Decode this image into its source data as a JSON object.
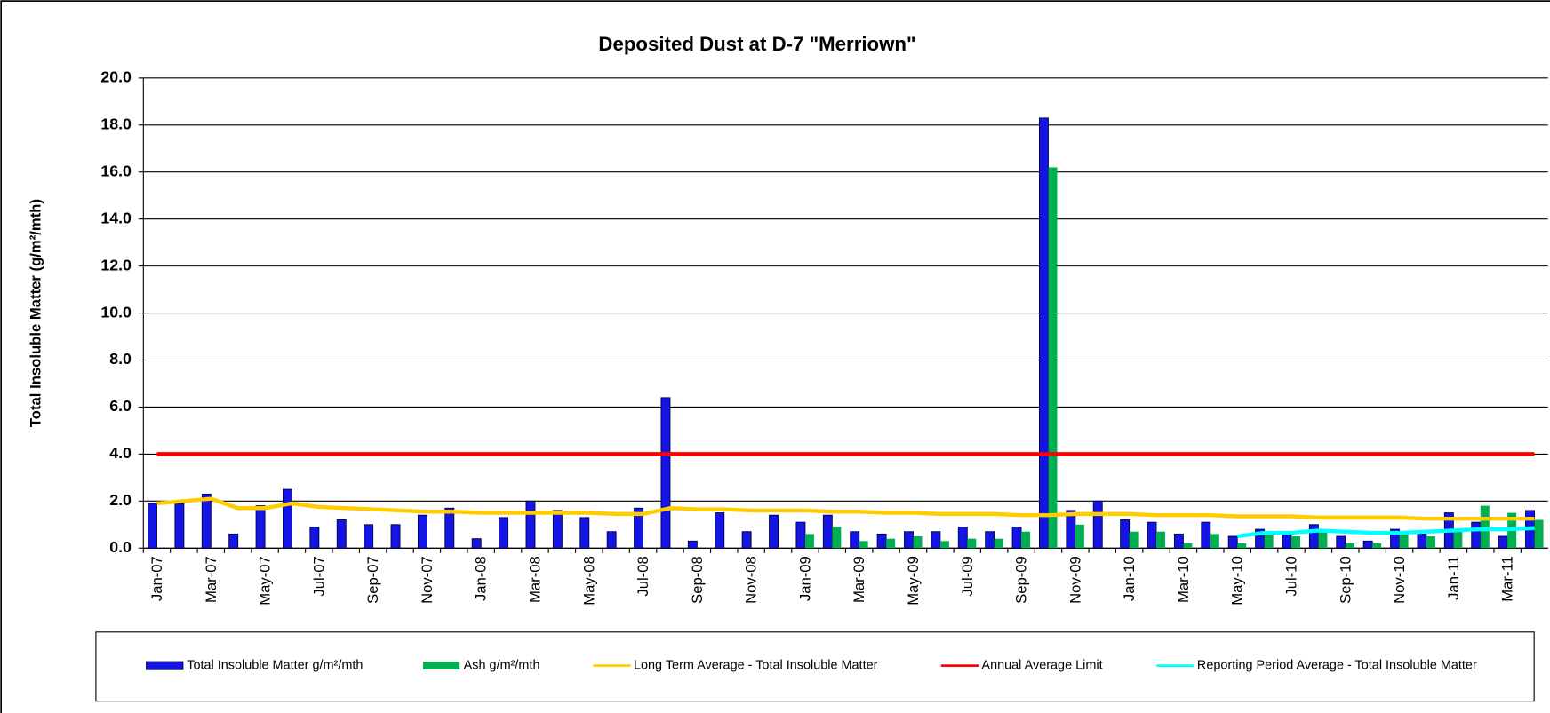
{
  "chart_data": {
    "type": "bar",
    "title": "Deposited Dust at D-7 \"Merriown\"",
    "y_label": "Total Insoluble Matter  (g/m²/mth)",
    "categories": [
      "Jan-07",
      null,
      "Mar-07",
      null,
      "May-07",
      null,
      "Jul-07",
      null,
      "Sep-07",
      null,
      "Nov-07",
      null,
      "Jan-08",
      null,
      "Mar-08",
      null,
      "May-08",
      null,
      "Jul-08",
      null,
      "Sep-08",
      null,
      "Nov-08",
      null,
      "Jan-09",
      null,
      "Mar-09",
      null,
      "May-09",
      null,
      "Jul-09",
      null,
      "Sep-09",
      null,
      "Nov-09",
      null,
      "Jan-10",
      null,
      "Mar-10",
      null,
      "May-10",
      null,
      "Jul-10",
      null,
      "Sep-10",
      null,
      "Nov-10",
      null,
      "Jan-11",
      null,
      "Mar-11",
      null
    ],
    "series": [
      {
        "name": "Total Insoluble Matter  g/m²/mth",
        "type": "bar",
        "color": "#1414e6",
        "values": [
          1.9,
          1.9,
          2.3,
          0.6,
          1.8,
          2.5,
          0.9,
          1.2,
          1.0,
          1.0,
          1.4,
          1.7,
          0.4,
          1.3,
          2.0,
          1.6,
          1.3,
          0.7,
          1.7,
          6.4,
          0.3,
          1.5,
          0.7,
          1.4,
          1.1,
          1.4,
          0.7,
          0.6,
          0.7,
          0.7,
          0.9,
          0.7,
          0.9,
          18.3,
          1.6,
          2.0,
          1.2,
          1.1,
          0.6,
          1.1,
          0.5,
          0.8,
          0.6,
          1.0,
          0.5,
          0.3,
          0.8,
          0.6,
          1.5,
          1.1,
          0.5,
          1.6
        ]
      },
      {
        "name": "Ash  g/m²/mth",
        "type": "bar",
        "color": "#00b050",
        "values": [
          null,
          null,
          null,
          null,
          null,
          null,
          null,
          null,
          null,
          null,
          null,
          null,
          null,
          null,
          null,
          null,
          null,
          null,
          null,
          null,
          null,
          null,
          null,
          null,
          0.6,
          0.9,
          0.3,
          0.4,
          0.5,
          0.3,
          0.4,
          0.4,
          0.7,
          16.2,
          1.0,
          null,
          0.7,
          0.7,
          0.2,
          0.6,
          0.2,
          0.6,
          0.5,
          0.7,
          0.2,
          0.2,
          0.7,
          0.5,
          0.8,
          1.8,
          1.5,
          1.2
        ]
      },
      {
        "name": "Long Term Average - Total Insoluble Matter",
        "type": "line",
        "color": "#ffcc00",
        "values": [
          1.9,
          2.0,
          2.1,
          1.7,
          1.7,
          1.9,
          1.75,
          1.7,
          1.65,
          1.6,
          1.55,
          1.55,
          1.5,
          1.5,
          1.5,
          1.5,
          1.5,
          1.45,
          1.45,
          1.7,
          1.65,
          1.65,
          1.6,
          1.6,
          1.6,
          1.55,
          1.55,
          1.5,
          1.5,
          1.45,
          1.45,
          1.45,
          1.4,
          1.4,
          1.45,
          1.45,
          1.45,
          1.4,
          1.4,
          1.4,
          1.35,
          1.35,
          1.35,
          1.3,
          1.3,
          1.3,
          1.3,
          1.25,
          1.25,
          1.25,
          1.25,
          1.25
        ]
      },
      {
        "name": "Annual Average Limit",
        "type": "line",
        "color": "#ff0000",
        "values": [
          4,
          4,
          4,
          4,
          4,
          4,
          4,
          4,
          4,
          4,
          4,
          4,
          4,
          4,
          4,
          4,
          4,
          4,
          4,
          4,
          4,
          4,
          4,
          4,
          4,
          4,
          4,
          4,
          4,
          4,
          4,
          4,
          4,
          4,
          4,
          4,
          4,
          4,
          4,
          4,
          4,
          4,
          4,
          4,
          4,
          4,
          4,
          4,
          4,
          4,
          4,
          4
        ]
      },
      {
        "name": "Reporting Period Average - Total Insoluble Matter",
        "type": "line",
        "color": "#00ffff",
        "values": [
          null,
          null,
          null,
          null,
          null,
          null,
          null,
          null,
          null,
          null,
          null,
          null,
          null,
          null,
          null,
          null,
          null,
          null,
          null,
          null,
          null,
          null,
          null,
          null,
          null,
          null,
          null,
          null,
          null,
          null,
          null,
          null,
          null,
          null,
          null,
          null,
          null,
          null,
          null,
          null,
          0.5,
          0.65,
          0.65,
          0.75,
          0.7,
          0.65,
          0.65,
          0.7,
          0.75,
          0.8,
          0.8,
          0.85
        ]
      }
    ],
    "ylim": [
      0,
      20
    ],
    "yticks": [
      {
        "value": 0,
        "label": "0.0"
      },
      {
        "value": 2,
        "label": "2.0"
      },
      {
        "value": 4,
        "label": "4.0"
      },
      {
        "value": 6,
        "label": "6.0"
      },
      {
        "value": 8,
        "label": "8.0"
      },
      {
        "value": 10,
        "label": "10.0"
      },
      {
        "value": 12,
        "label": "12.0"
      },
      {
        "value": 14,
        "label": "14.0"
      },
      {
        "value": 16,
        "label": "16.0"
      },
      {
        "value": 18,
        "label": "18.0"
      },
      {
        "value": 20,
        "label": "20.0"
      }
    ],
    "grid": true,
    "legend": "bottom"
  }
}
